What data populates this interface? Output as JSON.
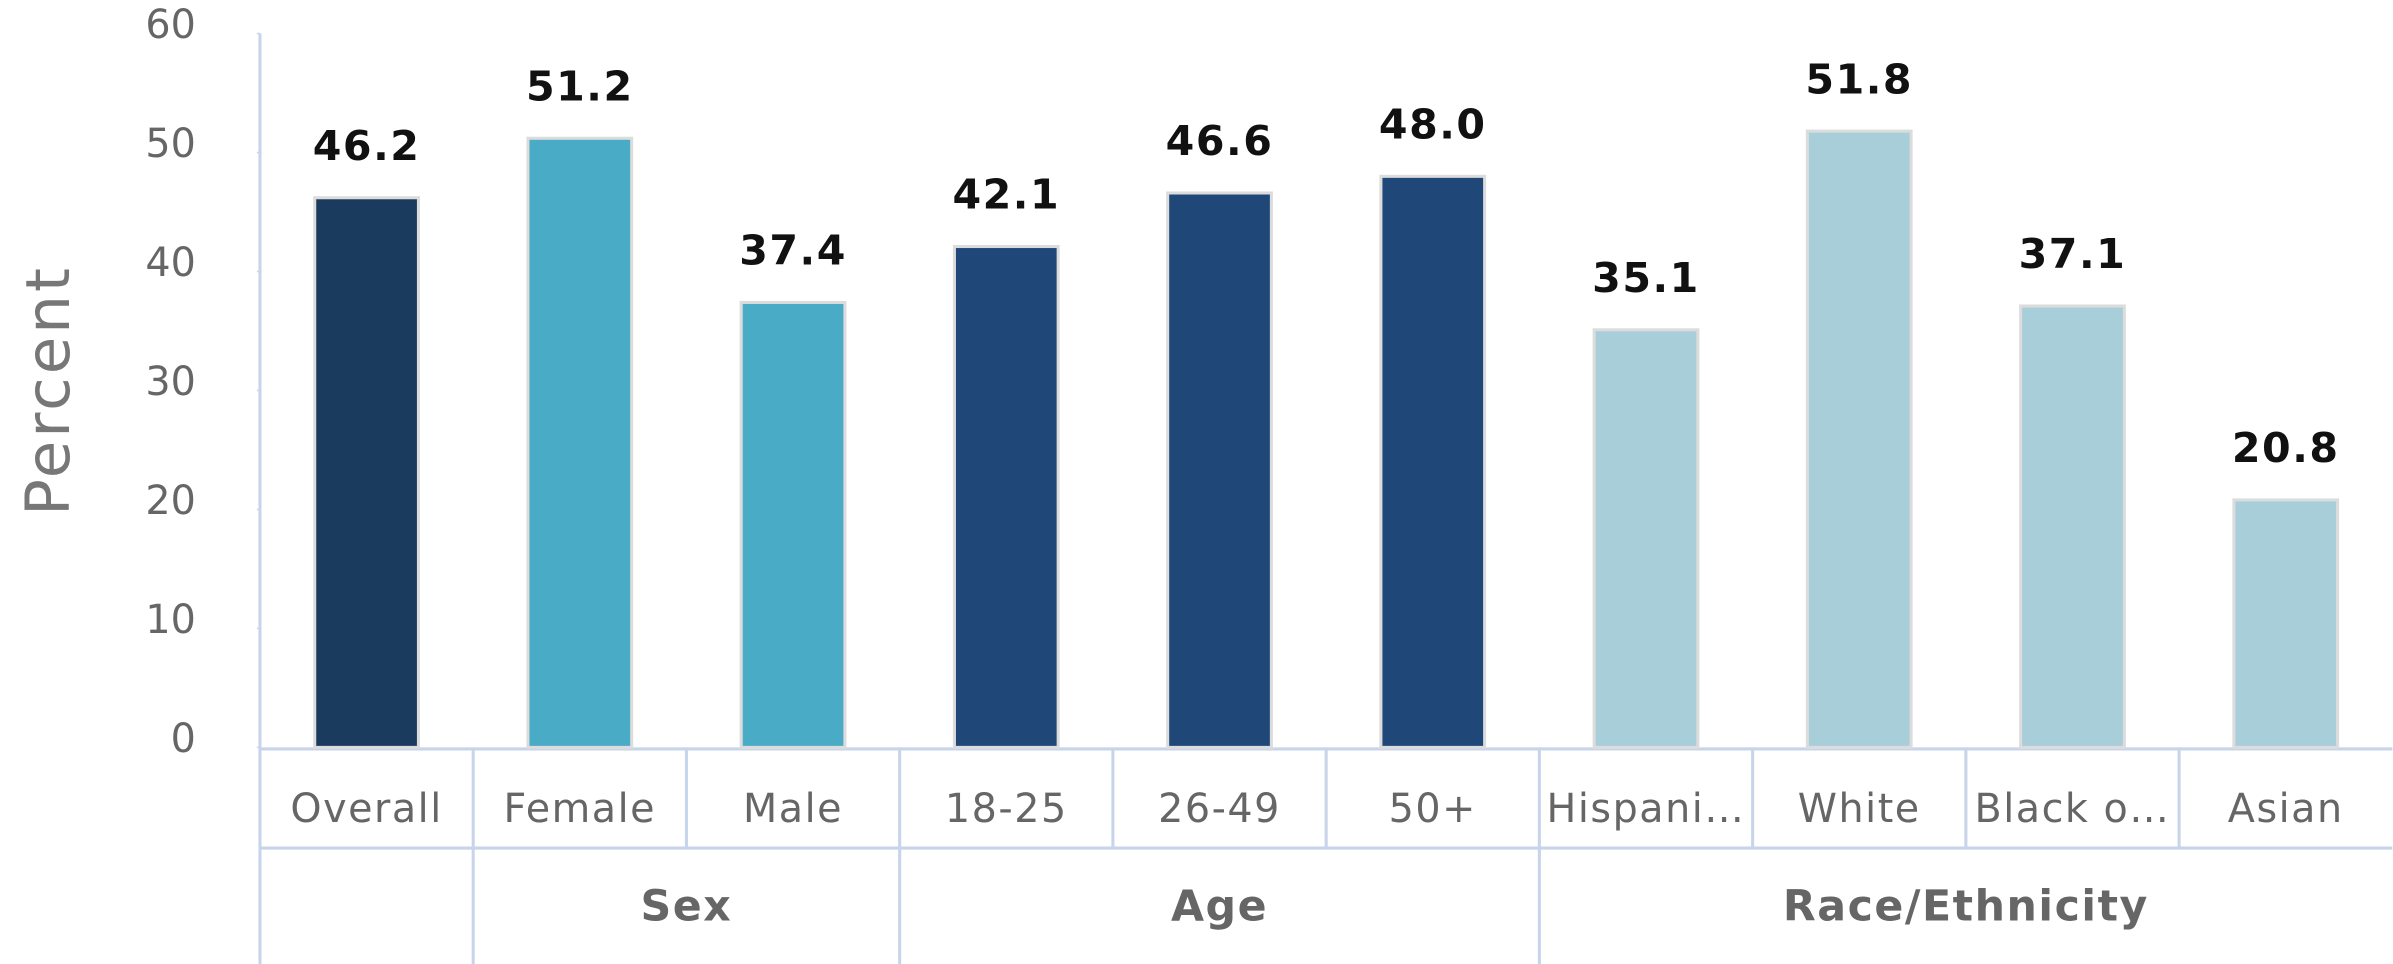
{
  "chart_data": {
    "type": "bar",
    "ylabel": "Percent",
    "categories": [
      "Overall",
      "Female",
      "Male",
      "18-25",
      "26-49",
      "50+",
      "Hispani…",
      "White",
      "Black o…",
      "Asian"
    ],
    "values": [
      46.2,
      51.2,
      37.4,
      42.1,
      46.6,
      48.0,
      35.1,
      51.8,
      37.1,
      20.8
    ],
    "value_labels": [
      "46.2",
      "51.2",
      "37.4",
      "42.1",
      "46.6",
      "48.0",
      "35.1",
      "51.8",
      "37.1",
      "20.8"
    ],
    "colors": [
      "#1a3a5e",
      "#4aabc6",
      "#4aabc6",
      "#1f4878",
      "#1f4878",
      "#1f4878",
      "#a8ceda",
      "#a8ceda",
      "#a8ceda",
      "#a8ceda"
    ],
    "groups": [
      {
        "label": null,
        "size": 1
      },
      {
        "label": "Sex",
        "size": 2
      },
      {
        "label": "Age",
        "size": 3
      },
      {
        "label": "Race/Ethnicity",
        "size": 4
      }
    ],
    "ylim": [
      0,
      60
    ],
    "yticks": [
      0,
      10,
      20,
      30,
      40,
      50,
      60
    ],
    "grid": false
  }
}
